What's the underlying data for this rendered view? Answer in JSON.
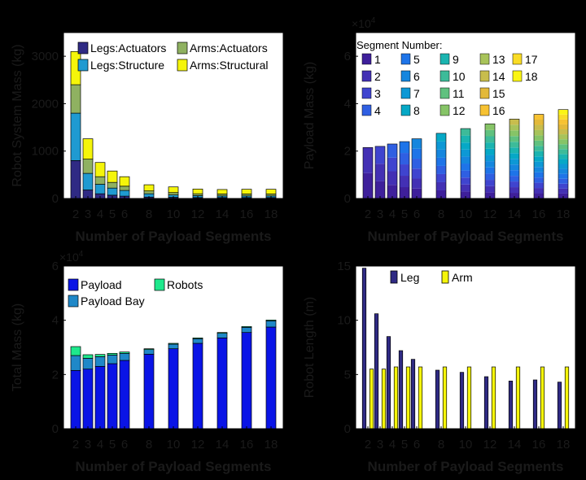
{
  "figure": {
    "background": "#000000",
    "axis_color": "#000000",
    "plot_bg": "#ffffff"
  },
  "chart_data": [
    {
      "id": "robot-mass",
      "type": "bar",
      "stacked": true,
      "xlabel": "Number of Payload Segments",
      "ylabel": "Robot System Mass (kg)",
      "x": [
        2,
        3,
        4,
        5,
        6,
        8,
        10,
        12,
        14,
        16,
        18
      ],
      "xticks": [
        "2",
        "3",
        "4",
        "5",
        "6",
        "8",
        "10",
        "12",
        "14",
        "16",
        "18"
      ],
      "xlim": [
        1,
        19
      ],
      "ylim": [
        0,
        3500
      ],
      "yticks": [
        0,
        1000,
        2000,
        3000
      ],
      "ytick_labels": [
        "0",
        "1000",
        "2000",
        "3000"
      ],
      "legend": {
        "placement": "top",
        "columns": 2
      },
      "series": [
        {
          "name": "Legs:Actuators",
          "color": "#2f2a84",
          "values": [
            800,
            180,
            100,
            70,
            50,
            30,
            25,
            20,
            20,
            20,
            20
          ]
        },
        {
          "name": "Legs:Structure",
          "color": "#1f9ad1",
          "values": [
            1000,
            350,
            200,
            150,
            120,
            70,
            50,
            40,
            35,
            35,
            35
          ]
        },
        {
          "name": "Arms:Actuators",
          "color": "#8fb161",
          "values": [
            600,
            300,
            160,
            120,
            90,
            60,
            50,
            40,
            40,
            40,
            40
          ]
        },
        {
          "name": "Arms:Structural",
          "color": "#f5f50a",
          "values": [
            700,
            430,
            300,
            240,
            200,
            130,
            120,
            100,
            95,
            100,
            100
          ]
        }
      ]
    },
    {
      "id": "payload-mass",
      "type": "bar",
      "stacked": true,
      "xlabel": "Number of Payload Segments",
      "ylabel": "Payload Mass (kg)",
      "exponent_label": "×10",
      "exponent_power": "4",
      "x": [
        2,
        3,
        4,
        5,
        6,
        8,
        10,
        12,
        14,
        16,
        18
      ],
      "xticks": [
        "2",
        "3",
        "4",
        "5",
        "6",
        "8",
        "10",
        "12",
        "14",
        "16",
        "18"
      ],
      "xlim": [
        1,
        19
      ],
      "ylim": [
        0,
        70000
      ],
      "yticks": [
        0,
        20000,
        40000,
        60000
      ],
      "ytick_labels": [
        "0",
        "2",
        "4",
        "6"
      ],
      "totals": [
        21500,
        22000,
        23000,
        24000,
        25200,
        27500,
        29500,
        31500,
        33500,
        35500,
        37500
      ],
      "legend": {
        "title": "Segment Number:",
        "placement": "top",
        "columns": 5,
        "entries": [
          "1",
          "2",
          "3",
          "4",
          "5",
          "6",
          "7",
          "8",
          "9",
          "10",
          "11",
          "12",
          "13",
          "14",
          "15",
          "16",
          "17",
          "18"
        ]
      },
      "segment_colors": [
        "#3e1f9b",
        "#4330b4",
        "#3f44cf",
        "#2f5fe2",
        "#1e74e8",
        "#1586de",
        "#0d98d5",
        "#06a8c6",
        "#1bb4b0",
        "#3dbb99",
        "#60c17f",
        "#86c467",
        "#a8c35a",
        "#c8bd4d",
        "#e3b93a",
        "#f7c232",
        "#f9dc26",
        "#fbf514"
      ]
    },
    {
      "id": "total-mass",
      "type": "bar",
      "stacked": true,
      "xlabel": "Number of Payload Segments",
      "ylabel": "Total Mass (kg)",
      "exponent_label": "×10",
      "exponent_power": "4",
      "x": [
        2,
        3,
        4,
        5,
        6,
        8,
        10,
        12,
        14,
        16,
        18
      ],
      "xticks": [
        "2",
        "3",
        "4",
        "5",
        "6",
        "8",
        "10",
        "12",
        "14",
        "16",
        "18"
      ],
      "xlim": [
        1,
        19
      ],
      "ylim": [
        0,
        60000
      ],
      "yticks": [
        0,
        20000,
        40000,
        60000
      ],
      "ytick_labels": [
        "0",
        "2",
        "4",
        "6"
      ],
      "legend": {
        "placement": "top",
        "columns": 2
      },
      "series": [
        {
          "name": "Payload",
          "color": "#0a14e6",
          "values": [
            21500,
            22000,
            23000,
            24000,
            25200,
            27500,
            29500,
            31500,
            33500,
            35500,
            37500
          ]
        },
        {
          "name": "Payload Bay",
          "color": "#1f88c8",
          "values": [
            5500,
            4000,
            3600,
            3200,
            2600,
            1700,
            1700,
            1700,
            1700,
            1900,
            2300
          ]
        },
        {
          "name": "Robots",
          "color": "#1ee88c",
          "values": [
            3300,
            1300,
            800,
            600,
            500,
            300,
            300,
            300,
            300,
            300,
            300
          ]
        }
      ]
    },
    {
      "id": "robot-length",
      "type": "bar",
      "grouped": true,
      "xlabel": "Number of Payload Segments",
      "ylabel": "Robot Length (m)",
      "x": [
        2,
        3,
        4,
        5,
        6,
        8,
        10,
        12,
        14,
        16,
        18
      ],
      "xticks": [
        "2",
        "3",
        "4",
        "5",
        "6",
        "8",
        "10",
        "12",
        "14",
        "16",
        "18"
      ],
      "xlim": [
        1,
        19
      ],
      "ylim": [
        0,
        15
      ],
      "yticks": [
        0,
        5,
        10,
        15
      ],
      "ytick_labels": [
        "0",
        "5",
        "10",
        "15"
      ],
      "legend": {
        "placement": "top-left",
        "columns": 2
      },
      "series": [
        {
          "name": "Leg",
          "color": "#2f2a84",
          "values": [
            14.8,
            10.6,
            8.5,
            7.2,
            6.4,
            5.4,
            5.2,
            4.8,
            4.4,
            4.5,
            4.3
          ]
        },
        {
          "name": "Arm",
          "color": "#f5f50a",
          "values": [
            5.5,
            5.5,
            5.7,
            5.7,
            5.7,
            5.7,
            5.7,
            5.7,
            5.7,
            5.7,
            5.7
          ]
        }
      ]
    }
  ]
}
